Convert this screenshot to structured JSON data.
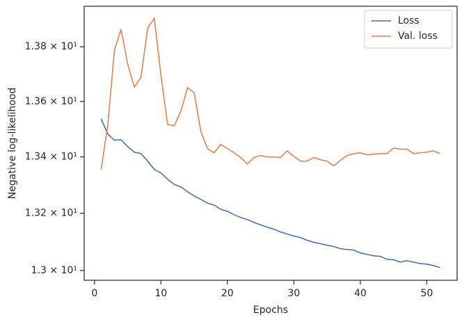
{
  "chart_data": {
    "type": "line",
    "x_label": "Epochs",
    "y_label": "Negative log-likelihood",
    "x": [
      1,
      2,
      3,
      4,
      5,
      6,
      7,
      8,
      9,
      10,
      11,
      12,
      13,
      14,
      15,
      16,
      17,
      18,
      19,
      20,
      21,
      22,
      23,
      24,
      25,
      26,
      27,
      28,
      29,
      30,
      31,
      32,
      33,
      34,
      35,
      36,
      37,
      38,
      39,
      40,
      41,
      42,
      43,
      44,
      45,
      46,
      47,
      48,
      49,
      50,
      51,
      52
    ],
    "series": [
      {
        "name": "Loss",
        "color": "#4c72b0",
        "values": [
          13.537,
          13.482,
          13.46,
          13.462,
          13.437,
          13.417,
          13.412,
          13.385,
          13.355,
          13.343,
          13.32,
          13.302,
          13.293,
          13.276,
          13.261,
          13.249,
          13.236,
          13.229,
          13.214,
          13.207,
          13.195,
          13.185,
          13.178,
          13.168,
          13.159,
          13.151,
          13.144,
          13.134,
          13.127,
          13.12,
          13.115,
          13.105,
          13.098,
          13.093,
          13.088,
          13.083,
          13.076,
          13.073,
          13.071,
          13.061,
          13.056,
          13.051,
          13.049,
          13.039,
          13.037,
          13.029,
          13.034,
          13.029,
          13.024,
          13.022,
          13.017,
          13.01
        ]
      },
      {
        "name": "Val. loss",
        "color": "#dd8452",
        "values": [
          13.355,
          13.514,
          13.788,
          13.864,
          13.736,
          13.652,
          13.688,
          13.869,
          13.905,
          13.695,
          13.517,
          13.512,
          13.565,
          13.65,
          13.632,
          13.492,
          13.43,
          13.415,
          13.445,
          13.43,
          13.415,
          13.398,
          13.375,
          13.398,
          13.405,
          13.4,
          13.4,
          13.398,
          13.422,
          13.402,
          13.385,
          13.385,
          13.398,
          13.39,
          13.385,
          13.368,
          13.388,
          13.405,
          13.412,
          13.415,
          13.408,
          13.41,
          13.412,
          13.412,
          13.432,
          13.428,
          13.428,
          13.412,
          13.415,
          13.417,
          13.422,
          13.412
        ]
      }
    ],
    "xlim": [
      -1.55,
      54.55
    ],
    "xticks": [
      0,
      10,
      20,
      30,
      40,
      50
    ],
    "ylim": [
      12.966,
      13.95
    ],
    "y_scale": "log",
    "yticks": [
      {
        "value": 13.0,
        "label": "1.3 × 10¹"
      },
      {
        "value": 13.2,
        "label": "1.32 × 10¹"
      },
      {
        "value": 13.4,
        "label": "1.34 × 10¹"
      },
      {
        "value": 13.6,
        "label": "1.36 × 10¹"
      },
      {
        "value": 13.8,
        "label": "1.38 × 10¹"
      }
    ],
    "grid": false,
    "legend": "upper right"
  }
}
